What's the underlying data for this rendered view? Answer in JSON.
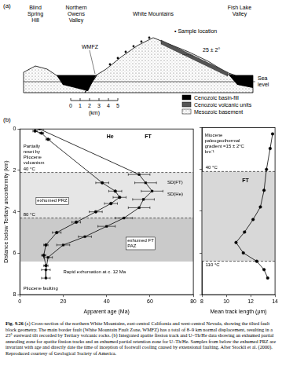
{
  "panel_a": {
    "label": "(a)",
    "places": [
      [
        "Blind",
        "Spring",
        "Hill"
      ],
      [
        "Northern",
        "Owens",
        "Valley"
      ],
      [
        "White Mountains"
      ],
      [
        "Fish Lake",
        "Valley"
      ]
    ],
    "fault": "WMFZ",
    "tilt": "25 ± 2°",
    "sample_location": "• Sample location",
    "sea_level": [
      "Sea",
      "level"
    ],
    "units": [
      "Cenozoic basin-fill",
      "Cenozoic volcanic units",
      "Mesozoic basement"
    ],
    "scale": {
      "ticks": [
        0,
        1,
        2,
        3,
        4,
        5
      ],
      "unit": "(km)"
    }
  },
  "panel_b_label": "(b)",
  "chart_data": [
    {
      "type": "line",
      "x_label": "Apparent age (Ma)",
      "y_label": "Distance below Tertiary unconformity (km)",
      "xlim": [
        0,
        80
      ],
      "xticks": [
        0,
        20,
        40,
        60,
        80
      ],
      "ylim": [
        8,
        0
      ],
      "yticks": [
        0,
        2,
        4,
        6,
        8
      ],
      "grid": false,
      "series": [
        {
          "name": "He",
          "color": "#000000",
          "marker": "circle",
          "line_style": "solid",
          "x": [
            7,
            10,
            13,
            38,
            44,
            46,
            42,
            35,
            26,
            17,
            12,
            11,
            12
          ],
          "values": [
            0.1,
            0.2,
            0.5,
            2.6,
            3.0,
            3.3,
            3.6,
            4.0,
            4.5,
            5.0,
            5.6,
            6.1,
            6.6
          ],
          "x_error": [
            1,
            1,
            1,
            3,
            3,
            3,
            3,
            3,
            2,
            2,
            1,
            1,
            1
          ]
        },
        {
          "name": "FT",
          "color": "#000000",
          "marker": "square",
          "line_style": "solid",
          "x": [
            9,
            55,
            58,
            61,
            57,
            55,
            48,
            40,
            30,
            20,
            13,
            12,
            12
          ],
          "values": [
            0.0,
            2.2,
            2.6,
            3.0,
            3.4,
            3.8,
            4.3,
            4.7,
            5.2,
            5.6,
            6.2,
            6.8,
            7.2
          ],
          "x_error": [
            2,
            5,
            5,
            5,
            5,
            5,
            4,
            4,
            3,
            3,
            2,
            2,
            2
          ]
        }
      ],
      "isotherms": [
        {
          "label": "40 °C",
          "depth": 2.1
        },
        {
          "label": "80 °C",
          "depth": 4.3
        }
      ],
      "zones": [
        {
          "label": "exhumed PRZ",
          "from": 2.1,
          "to": 4.3
        },
        {
          "label": "exhumed FT PAZ",
          "from": 4.3,
          "to": 6.4
        }
      ],
      "annotations": [
        "Partially reset by Pliocene volcanism",
        "SD(FT)",
        "SD(He)",
        "Rapid exhumation at c. 12 Ma",
        "Pliocene faulting"
      ]
    },
    {
      "type": "line",
      "x_label": "Mean track length (μm)",
      "xlim": [
        8,
        14
      ],
      "xticks": [
        8,
        10,
        12,
        14
      ],
      "ylim": [
        8,
        0
      ],
      "yticks": [
        0,
        2,
        4,
        6,
        8
      ],
      "grid": false,
      "tick_labels": "x",
      "series": [
        {
          "name": "FT",
          "color": "#000000",
          "marker": "circle",
          "line_style": "solid",
          "x": [
            13.8,
            13.6,
            13.3,
            13.1,
            12.8,
            12.2,
            11.5,
            10.8,
            11.4,
            12.5,
            13.1,
            13.4
          ],
          "values": [
            0.3,
            1.0,
            2.0,
            3.0,
            3.8,
            4.4,
            5.0,
            5.5,
            6.0,
            6.4,
            6.8,
            7.2
          ]
        }
      ],
      "isotherms": [
        {
          "label": "40 °C",
          "depth": 2.1
        },
        {
          "label": "110 °C",
          "depth": 6.4
        }
      ],
      "zones": [
        {
          "from": 2.1,
          "to": 6.4
        }
      ],
      "annotations": [
        "Miocene paleogeothermal gradient =15 ± 2°C km⁻¹"
      ]
    }
  ],
  "caption": {
    "label": "Fig. 9.26",
    "text": "(a) Cross-section of the northern White Mountains, east-central California and west-central Nevada, showing the tilted fault block geometry. The main border fault (White Mountain Fault Zone, WMFZ) has a total of 8–9 km normal displacement, resulting in a 25° eastward tilt recorded by Tertiary volcanic rocks. (b) Integrated apatite fission track and U–Th/He data showing an exhumed partial annealing zone for apatite fission tracks and an exhumed partial retention zone for U–Th/He. Samples from below the exhumed PRZ are invariant with age and directly date the time of inception of footwall cooling caused by extensional faulting. After Stockli et al. (2000). Reproduced courtesy of Geological Society of America."
  }
}
